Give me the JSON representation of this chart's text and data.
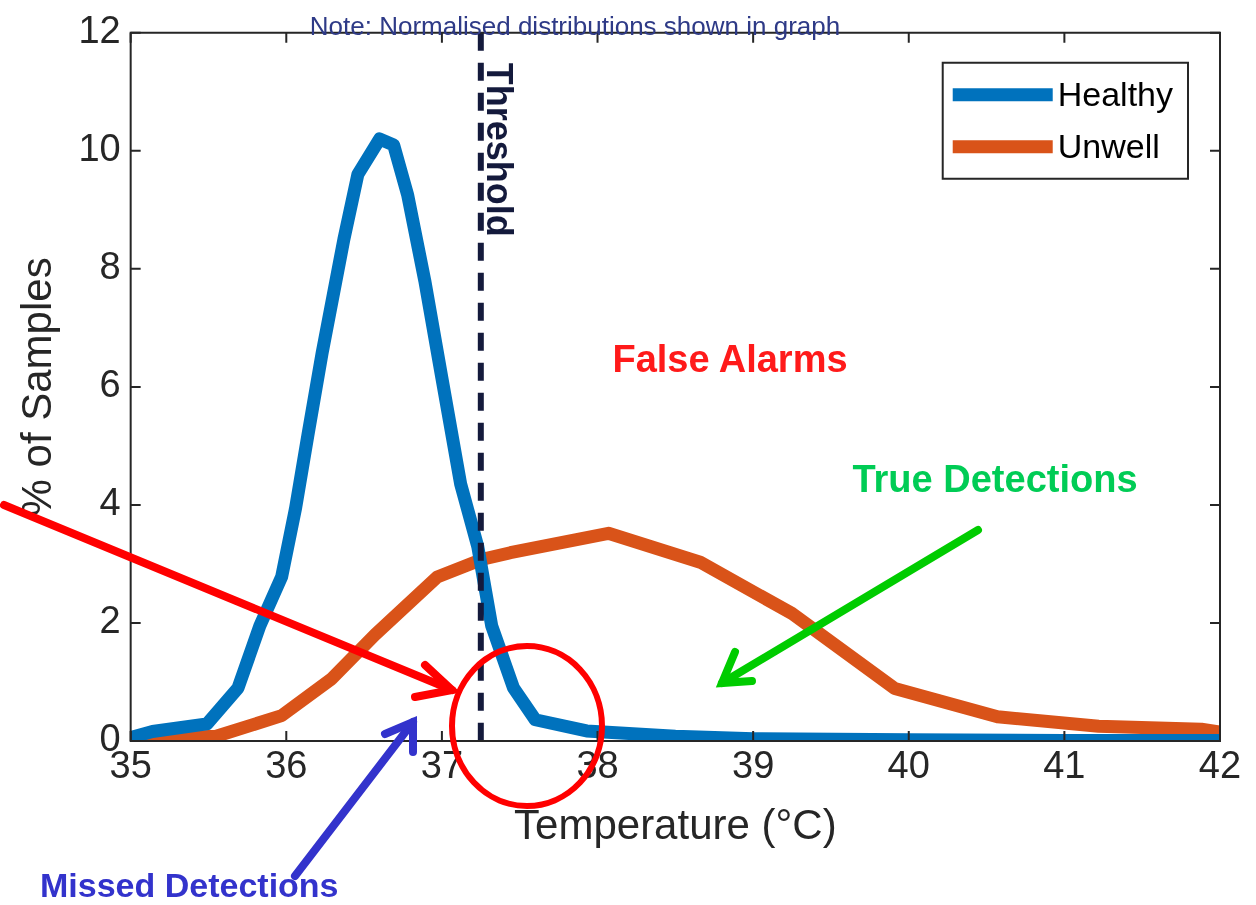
{
  "chart_data": {
    "type": "line",
    "xlabel": "Temperature (°C)",
    "ylabel": "% of Samples",
    "xlim": [
      35,
      42
    ],
    "xticks": [
      35,
      36,
      37,
      38,
      39,
      40,
      41,
      42
    ],
    "ylim": [
      0,
      12
    ],
    "yticks": [
      0,
      2,
      4,
      6,
      8,
      10,
      12
    ],
    "grid": false,
    "legend": "top right",
    "marker": "none",
    "line_style": "solid",
    "series": [
      {
        "name": "Healthy",
        "color": "#0072bd",
        "x": [
          35,
          35.14,
          35.49,
          35.69,
          35.83,
          35.97,
          36.06,
          36.14,
          36.23,
          36.37,
          36.46,
          36.6,
          36.69,
          36.78,
          36.89,
          37,
          37.12,
          37.23,
          37.32,
          37.46,
          37.6,
          37.93,
          38.5,
          39,
          40,
          41,
          42
        ],
        "values": [
          0.06,
          0.16,
          0.29,
          0.9,
          1.95,
          2.78,
          3.95,
          5.2,
          6.57,
          8.5,
          9.6,
          10.2,
          10.1,
          9.25,
          7.8,
          6.15,
          4.36,
          3.3,
          1.95,
          0.9,
          0.36,
          0.17,
          0.08,
          0.04,
          0.02,
          0.01,
          0.01
        ]
      },
      {
        "name": "Unwell",
        "color": "#d95319",
        "x": [
          35,
          35.55,
          35.97,
          36.29,
          36.57,
          36.97,
          37.26,
          37.44,
          38.07,
          38.66,
          39.25,
          39.91,
          40.57,
          41.22,
          41.88,
          42
        ],
        "values": [
          0.03,
          0.08,
          0.43,
          1.05,
          1.8,
          2.78,
          3.08,
          3.19,
          3.52,
          3.03,
          2.16,
          0.89,
          0.41,
          0.25,
          0.2,
          0.15
        ]
      }
    ],
    "ref_lines": [
      {
        "axis": "x",
        "value": 37.25,
        "label": "Threshold",
        "color": "#141a3c",
        "line_style": "dashed"
      }
    ],
    "annotations": [
      "Note: Normalised distributions shown in graph",
      "False Alarms",
      "True Detections",
      "Missed Detections"
    ]
  }
}
